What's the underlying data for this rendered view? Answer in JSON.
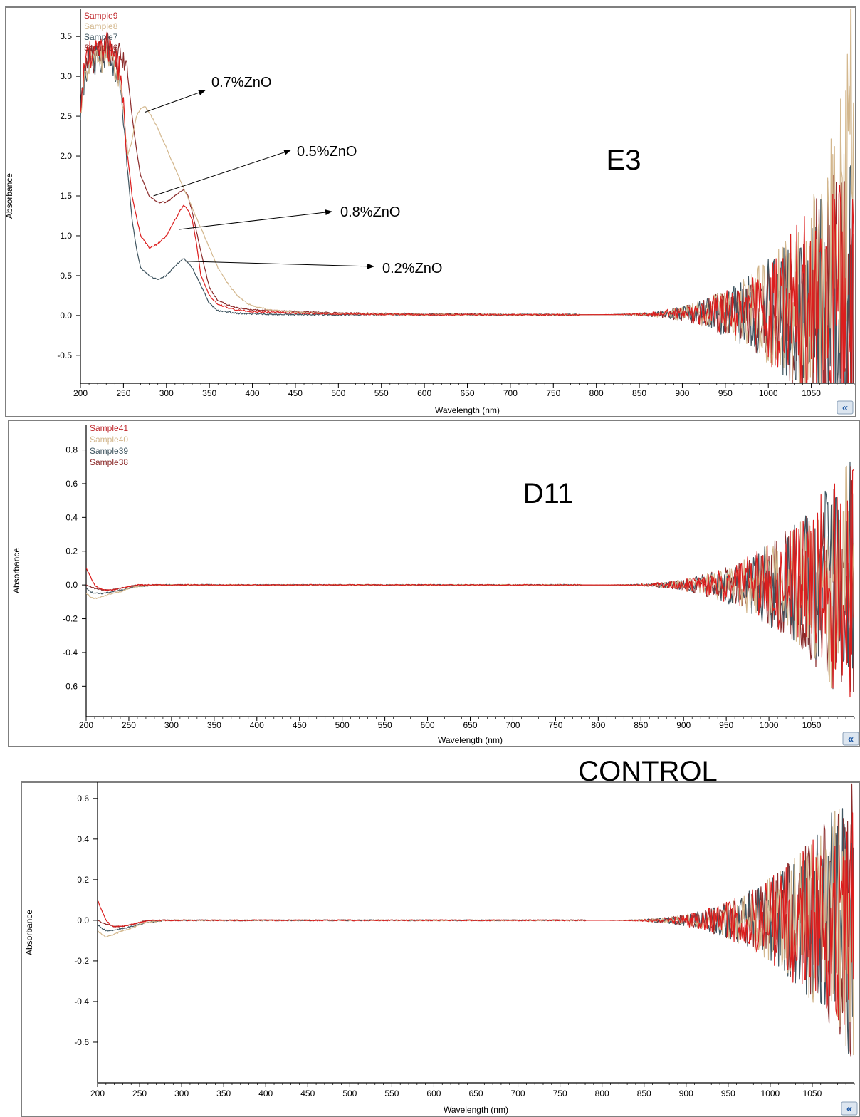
{
  "colors": {
    "sample_dark_red": "#c0282d",
    "sample_tan": "#d3b78d",
    "sample_slate": "#3f5560",
    "sample_maroon": "#8b2b2b",
    "bright_red": "#dc1e1e",
    "frame": "#7f7f7f",
    "button_bg": "#dde6f0",
    "button_fg": "#1f5aa6"
  },
  "icons": {
    "collapse": "double-chevron-left-icon",
    "collapse_glyph": "«"
  },
  "chart_data": [
    {
      "type": "line",
      "panel_label": "E3",
      "xlabel": "Wavelength (nm)",
      "ylabel": "Absorbance",
      "xlim": [
        200,
        1100
      ],
      "ylim": [
        -0.85,
        3.85
      ],
      "xticks": [
        200,
        250,
        300,
        350,
        400,
        450,
        500,
        550,
        600,
        650,
        700,
        750,
        800,
        850,
        900,
        950,
        1000,
        1050
      ],
      "yticks": [
        -0.5,
        0.0,
        0.5,
        1.0,
        1.5,
        2.0,
        2.5,
        3.0,
        3.5
      ],
      "ytick_labels": [
        "-0.5",
        "0.0",
        "0.5",
        "1.0",
        "1.5",
        "2.0",
        "2.5",
        "3.0",
        "3.5"
      ],
      "legend_position": "top-left",
      "legend": [
        "Sample9",
        "Sample8",
        "Sample7",
        "Sample6"
      ],
      "annotations": [
        {
          "text": "0.7%ZnO",
          "points_to": [
            275,
            2.55
          ]
        },
        {
          "text": "0.5%ZnO",
          "points_to": [
            285,
            1.5
          ]
        },
        {
          "text": "0.8%ZnO",
          "points_to": [
            315,
            1.08
          ]
        },
        {
          "text": "0.2%ZnO",
          "points_to": [
            322,
            0.68
          ]
        }
      ],
      "noise_onset_nm": 780,
      "series": [
        {
          "name": "Sample9",
          "color": "#c0282d",
          "x": [
            200,
            205,
            210,
            215,
            220,
            225,
            230,
            235,
            240,
            245,
            250,
            255,
            260,
            270,
            280,
            290,
            300,
            310,
            315,
            320,
            325,
            330,
            335,
            340,
            350,
            360,
            380,
            400,
            450,
            500,
            600,
            700,
            800,
            900,
            1000,
            1050,
            1100
          ],
          "y": [
            2.6,
            3.1,
            3.3,
            3.2,
            3.5,
            3.3,
            3.4,
            3.3,
            3.2,
            3.1,
            2.6,
            2.0,
            1.5,
            1.0,
            0.85,
            0.9,
            1.0,
            1.2,
            1.3,
            1.38,
            1.32,
            1.2,
            0.9,
            0.5,
            0.25,
            0.14,
            0.07,
            0.05,
            0.03,
            0.02,
            0.01,
            0.01,
            0.01,
            0.02,
            0.05,
            0.1,
            0.1
          ]
        },
        {
          "name": "Sample8",
          "color": "#d3b78d",
          "x": [
            200,
            205,
            210,
            215,
            220,
            225,
            230,
            235,
            240,
            245,
            250,
            255,
            260,
            265,
            270,
            275,
            280,
            290,
            300,
            310,
            320,
            330,
            340,
            350,
            360,
            370,
            380,
            390,
            400,
            420,
            450,
            500,
            600,
            700,
            800,
            900,
            1000,
            1050,
            1090,
            1095,
            1100
          ],
          "y": [
            2.6,
            3.0,
            3.2,
            3.2,
            3.3,
            3.2,
            3.3,
            3.2,
            3.1,
            2.9,
            2.6,
            2.0,
            2.2,
            2.5,
            2.6,
            2.62,
            2.55,
            2.35,
            2.1,
            1.85,
            1.6,
            1.35,
            1.1,
            0.85,
            0.6,
            0.42,
            0.28,
            0.18,
            0.12,
            0.07,
            0.04,
            0.02,
            0.01,
            0.01,
            0.01,
            0.02,
            0.06,
            0.12,
            1.0,
            3.8,
            0.3
          ]
        },
        {
          "name": "Sample7",
          "color": "#3f5560",
          "x": [
            200,
            205,
            210,
            215,
            220,
            225,
            230,
            235,
            240,
            245,
            250,
            255,
            260,
            265,
            270,
            275,
            280,
            290,
            300,
            310,
            320,
            330,
            340,
            350,
            360,
            380,
            400,
            450,
            500,
            600,
            700,
            800,
            900,
            1000,
            1050,
            1100
          ],
          "y": [
            2.5,
            3.0,
            3.2,
            3.1,
            3.3,
            3.2,
            3.3,
            3.2,
            3.1,
            3.0,
            2.5,
            1.8,
            1.2,
            0.85,
            0.6,
            0.55,
            0.5,
            0.45,
            0.5,
            0.62,
            0.72,
            0.6,
            0.38,
            0.15,
            0.06,
            0.03,
            0.02,
            0.01,
            0.01,
            0.01,
            0.01,
            0.01,
            0.02,
            0.05,
            0.1,
            0.1
          ]
        },
        {
          "name": "Sample6",
          "color": "#8b2b2b",
          "x": [
            200,
            205,
            210,
            215,
            220,
            225,
            230,
            235,
            240,
            245,
            250,
            255,
            260,
            265,
            270,
            280,
            290,
            300,
            310,
            320,
            325,
            330,
            340,
            350,
            360,
            380,
            400,
            450,
            500,
            600,
            700,
            800,
            900,
            1000,
            1050,
            1100
          ],
          "y": [
            2.6,
            3.1,
            3.3,
            3.2,
            3.4,
            3.3,
            3.4,
            3.3,
            3.2,
            3.25,
            3.2,
            3.0,
            2.5,
            2.1,
            1.75,
            1.5,
            1.42,
            1.42,
            1.5,
            1.58,
            1.5,
            1.3,
            0.8,
            0.35,
            0.18,
            0.1,
            0.07,
            0.05,
            0.03,
            0.02,
            0.01,
            0.01,
            0.02,
            0.05,
            0.1,
            0.1
          ]
        }
      ]
    },
    {
      "type": "line",
      "panel_label": "D11",
      "xlabel": "Wavelength (nm)",
      "ylabel": "Absorbance",
      "xlim": [
        200,
        1100
      ],
      "ylim": [
        -0.78,
        0.95
      ],
      "xticks": [
        200,
        250,
        300,
        350,
        400,
        450,
        500,
        550,
        600,
        650,
        700,
        750,
        800,
        850,
        900,
        950,
        1000,
        1050
      ],
      "yticks": [
        -0.6,
        -0.4,
        -0.2,
        0.0,
        0.2,
        0.4,
        0.6,
        0.8
      ],
      "ytick_labels": [
        "-0.6",
        "-0.4",
        "-0.2",
        "0.0",
        "0.2",
        "0.4",
        "0.6",
        "0.8"
      ],
      "legend_position": "top-left",
      "legend": [
        "Sample41",
        "Sample40",
        "Sample39",
        "Sample38"
      ],
      "noise_onset_nm": 780,
      "series": [
        {
          "name": "Sample41",
          "color": "#c0282d",
          "x": [
            200,
            205,
            210,
            215,
            220,
            230,
            240,
            250,
            260,
            280,
            300,
            400,
            600,
            800,
            1000,
            1100
          ],
          "y": [
            0.1,
            0.05,
            0.0,
            -0.02,
            -0.03,
            -0.03,
            -0.02,
            -0.01,
            0.0,
            0.0,
            0.0,
            0.0,
            0.0,
            0.0,
            0.0,
            0.0
          ]
        },
        {
          "name": "Sample40",
          "color": "#d3b78d",
          "x": [
            200,
            205,
            210,
            220,
            230,
            240,
            250,
            260,
            280,
            300,
            400,
            600,
            800,
            1000,
            1100
          ],
          "y": [
            -0.05,
            -0.07,
            -0.08,
            -0.07,
            -0.05,
            -0.04,
            -0.02,
            -0.01,
            0.0,
            0.0,
            0.0,
            0.0,
            0.0,
            0.0,
            0.0
          ]
        },
        {
          "name": "Sample39",
          "color": "#3f5560",
          "x": [
            200,
            205,
            210,
            220,
            230,
            240,
            250,
            260,
            280,
            300,
            400,
            600,
            800,
            1000,
            1100
          ],
          "y": [
            -0.02,
            -0.04,
            -0.05,
            -0.05,
            -0.04,
            -0.03,
            -0.02,
            -0.01,
            0.0,
            0.0,
            0.0,
            0.0,
            0.0,
            0.0,
            0.0
          ]
        },
        {
          "name": "Sample38",
          "color": "#8b2b2b",
          "x": [
            200,
            205,
            210,
            220,
            230,
            240,
            250,
            260,
            280,
            300,
            400,
            600,
            800,
            1000,
            1100
          ],
          "y": [
            0.0,
            -0.01,
            -0.02,
            -0.03,
            -0.03,
            -0.02,
            -0.01,
            0.0,
            0.0,
            0.0,
            0.0,
            0.0,
            0.0,
            0.0,
            0.0
          ]
        }
      ]
    },
    {
      "type": "line",
      "panel_label": "CONTROL",
      "xlabel": "Wavelength (nm)",
      "ylabel": "Absorbance",
      "xlim": [
        200,
        1100
      ],
      "ylim": [
        -0.8,
        0.68
      ],
      "xticks": [
        200,
        250,
        300,
        350,
        400,
        450,
        500,
        550,
        600,
        650,
        700,
        750,
        800,
        850,
        900,
        950,
        1000,
        1050
      ],
      "yticks": [
        -0.6,
        -0.4,
        -0.2,
        0.0,
        0.2,
        0.4,
        0.6
      ],
      "ytick_labels": [
        "-0.6",
        "-0.4",
        "-0.2",
        "0.0",
        "0.2",
        "0.4",
        "0.6"
      ],
      "legend_position": "none",
      "legend": [],
      "noise_onset_nm": 780,
      "series": [
        {
          "name": "",
          "color": "#c0282d",
          "x": [
            200,
            205,
            210,
            215,
            220,
            230,
            240,
            250,
            260,
            280,
            300,
            400,
            600,
            800,
            1000,
            1100
          ],
          "y": [
            0.1,
            0.05,
            0.0,
            -0.02,
            -0.03,
            -0.03,
            -0.02,
            -0.01,
            0.0,
            0.0,
            0.0,
            0.0,
            0.0,
            0.0,
            0.0,
            0.0
          ]
        },
        {
          "name": "",
          "color": "#d3b78d",
          "x": [
            200,
            205,
            210,
            220,
            230,
            240,
            250,
            260,
            280,
            300,
            400,
            600,
            800,
            1000,
            1100
          ],
          "y": [
            -0.05,
            -0.07,
            -0.08,
            -0.07,
            -0.05,
            -0.04,
            -0.02,
            -0.01,
            0.0,
            0.0,
            0.0,
            0.0,
            0.0,
            0.0,
            0.0
          ]
        },
        {
          "name": "",
          "color": "#3f5560",
          "x": [
            200,
            205,
            210,
            220,
            230,
            240,
            250,
            260,
            280,
            300,
            400,
            600,
            800,
            1000,
            1100
          ],
          "y": [
            -0.02,
            -0.04,
            -0.05,
            -0.05,
            -0.04,
            -0.03,
            -0.02,
            -0.01,
            0.0,
            0.0,
            0.0,
            0.0,
            0.0,
            0.0,
            0.0
          ]
        },
        {
          "name": "",
          "color": "#8b2b2b",
          "x": [
            200,
            205,
            210,
            220,
            230,
            240,
            250,
            260,
            280,
            300,
            400,
            600,
            800,
            1000,
            1100
          ],
          "y": [
            0.0,
            -0.01,
            -0.02,
            -0.03,
            -0.03,
            -0.02,
            -0.01,
            0.0,
            0.0,
            0.0,
            0.0,
            0.0,
            0.0,
            0.0,
            0.0
          ]
        }
      ]
    }
  ]
}
